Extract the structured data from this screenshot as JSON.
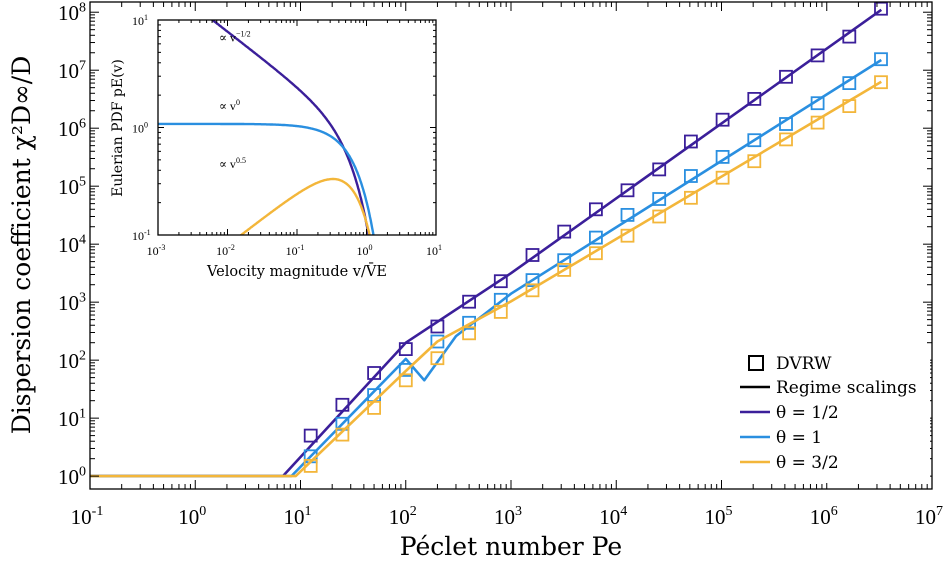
{
  "chart_data": [
    {
      "type": "line",
      "xlabel": "Péclet number Pe",
      "ylabel": "Dispersion coefficient χ²D∞/D",
      "xscale": "log",
      "yscale": "log",
      "xlim": [
        0.1,
        10000000
      ],
      "ylim": [
        0.6,
        150000000
      ],
      "grid": false,
      "legend": {
        "placement": "bottom-right",
        "entries": [
          "DVRW",
          "Regime scalings",
          "θ = 1/2",
          "θ = 1",
          "θ = 3/2"
        ]
      },
      "x_ticks": [
        {
          "value": 0.1,
          "base": "10",
          "exp": "-1"
        },
        {
          "value": 1,
          "base": "10",
          "exp": "0"
        },
        {
          "value": 10,
          "base": "10",
          "exp": "1"
        },
        {
          "value": 100,
          "base": "10",
          "exp": "2"
        },
        {
          "value": 1000,
          "base": "10",
          "exp": "3"
        },
        {
          "value": 10000,
          "base": "10",
          "exp": "4"
        },
        {
          "value": 100000,
          "base": "10",
          "exp": "5"
        },
        {
          "value": 1000000,
          "base": "10",
          "exp": "6"
        },
        {
          "value": 10000000,
          "base": "10",
          "exp": "7"
        }
      ],
      "y_ticks": [
        {
          "value": 1,
          "base": "10",
          "exp": "0"
        },
        {
          "value": 10,
          "base": "10",
          "exp": "1"
        },
        {
          "value": 100,
          "base": "10",
          "exp": "2"
        },
        {
          "value": 1000,
          "base": "10",
          "exp": "3"
        },
        {
          "value": 10000,
          "base": "10",
          "exp": "4"
        },
        {
          "value": 100000,
          "base": "10",
          "exp": "5"
        },
        {
          "value": 1000000,
          "base": "10",
          "exp": "6"
        },
        {
          "value": 10000000,
          "base": "10",
          "exp": "7"
        },
        {
          "value": 100000000,
          "base": "10",
          "exp": "8"
        }
      ],
      "series": [
        {
          "name": "θ = 1/2",
          "color": "#3b1f9a",
          "line": [
            [
              0.1,
              1
            ],
            [
              6.8,
              1
            ],
            [
              100,
              200
            ],
            [
              1000,
              3160
            ],
            [
              3300000,
              110000000
            ]
          ],
          "markers": [
            [
              12.5,
              5
            ],
            [
              25,
              17
            ],
            [
              50,
              60
            ],
            [
              100,
              155
            ],
            [
              200,
              380
            ],
            [
              400,
              1020
            ],
            [
              800,
              2300
            ],
            [
              1600,
              6500
            ],
            [
              3200,
              16500
            ],
            [
              6400,
              40000
            ],
            [
              12800,
              85000
            ],
            [
              25600,
              195000
            ],
            [
              51200,
              590000
            ],
            [
              102400,
              1400000
            ],
            [
              204800,
              3200000
            ],
            [
              409600,
              7700000
            ],
            [
              819200,
              18000000
            ],
            [
              1638400,
              38000000
            ],
            [
              3276800,
              115000000
            ]
          ]
        },
        {
          "name": "θ = 1",
          "color": "#2a8fe0",
          "line": [
            [
              0.1,
              1
            ],
            [
              8.2,
              1
            ],
            [
              100,
              105
            ],
            [
              150,
              45
            ],
            [
              300,
              260
            ],
            [
              1000,
              1400
            ],
            [
              3300000,
              15000000
            ]
          ],
          "markers": [
            [
              12.5,
              2.2
            ],
            [
              25,
              8
            ],
            [
              50,
              25
            ],
            [
              100,
              68
            ],
            [
              200,
              210
            ],
            [
              400,
              440
            ],
            [
              800,
              1100
            ],
            [
              1600,
              2400
            ],
            [
              3200,
              5300
            ],
            [
              6400,
              13000
            ],
            [
              12800,
              32000
            ],
            [
              25600,
              60000
            ],
            [
              51200,
              150000
            ],
            [
              102400,
              320000
            ],
            [
              204800,
              620000
            ],
            [
              409600,
              1180000
            ],
            [
              819200,
              2700000
            ],
            [
              1638400,
              6000000
            ],
            [
              3276800,
              15500000
            ]
          ]
        },
        {
          "name": "θ = 3/2",
          "color": "#f3b63a",
          "line": [
            [
              0.1,
              1
            ],
            [
              9,
              1
            ],
            [
              100,
              65
            ],
            [
              200,
              210
            ],
            [
              1000,
              1030
            ],
            [
              3300000,
              6300000
            ]
          ],
          "markers": [
            [
              12.5,
              1.5
            ],
            [
              25,
              5.2
            ],
            [
              50,
              15
            ],
            [
              100,
              45
            ],
            [
              200,
              108
            ],
            [
              400,
              290
            ],
            [
              800,
              680
            ],
            [
              1600,
              1600
            ],
            [
              3200,
              3600
            ],
            [
              6400,
              7000
            ],
            [
              12800,
              14000
            ],
            [
              25600,
              30000
            ],
            [
              51200,
              63000
            ],
            [
              102400,
              140000
            ],
            [
              204800,
              270000
            ],
            [
              409600,
              640000
            ],
            [
              819200,
              1250000
            ],
            [
              1638400,
              2400000
            ],
            [
              3276800,
              6200000
            ]
          ]
        }
      ]
    },
    {
      "type": "line",
      "xlabel": "Velocity magnitude v/V̄E",
      "ylabel": "Eulerian PDF pE(v)",
      "xscale": "log",
      "yscale": "log",
      "xlim": [
        0.001,
        10
      ],
      "ylim": [
        0.1,
        10
      ],
      "x_ticks": [
        {
          "value": 0.001,
          "base": "10",
          "exp": "-3"
        },
        {
          "value": 0.01,
          "base": "10",
          "exp": "-2"
        },
        {
          "value": 0.1,
          "base": "10",
          "exp": "-1"
        },
        {
          "value": 1,
          "base": "10",
          "exp": "0"
        },
        {
          "value": 10,
          "base": "10",
          "exp": "1"
        }
      ],
      "y_ticks": [
        {
          "value": 0.1,
          "base": "10",
          "exp": "-1"
        },
        {
          "value": 1,
          "base": "10",
          "exp": "0"
        },
        {
          "value": 10,
          "base": "10",
          "exp": "1"
        }
      ],
      "annotations": [
        {
          "pre": "∝ v",
          "exp": "−1/2",
          "at": [
            0.0075,
            6.3
          ]
        },
        {
          "pre": "∝ v",
          "exp": "0",
          "at": [
            0.0075,
            1.45
          ]
        },
        {
          "pre": "∝ v",
          "exp": "0.5",
          "at": [
            0.0075,
            0.42
          ]
        }
      ],
      "series": [
        {
          "name": "θ = 1/2",
          "color": "#3b1f9a",
          "theta": 0.5
        },
        {
          "name": "θ = 1",
          "color": "#2a8fe0",
          "theta": 1
        },
        {
          "name": "θ = 3/2",
          "color": "#f3b63a",
          "theta": 1.5
        }
      ]
    }
  ]
}
